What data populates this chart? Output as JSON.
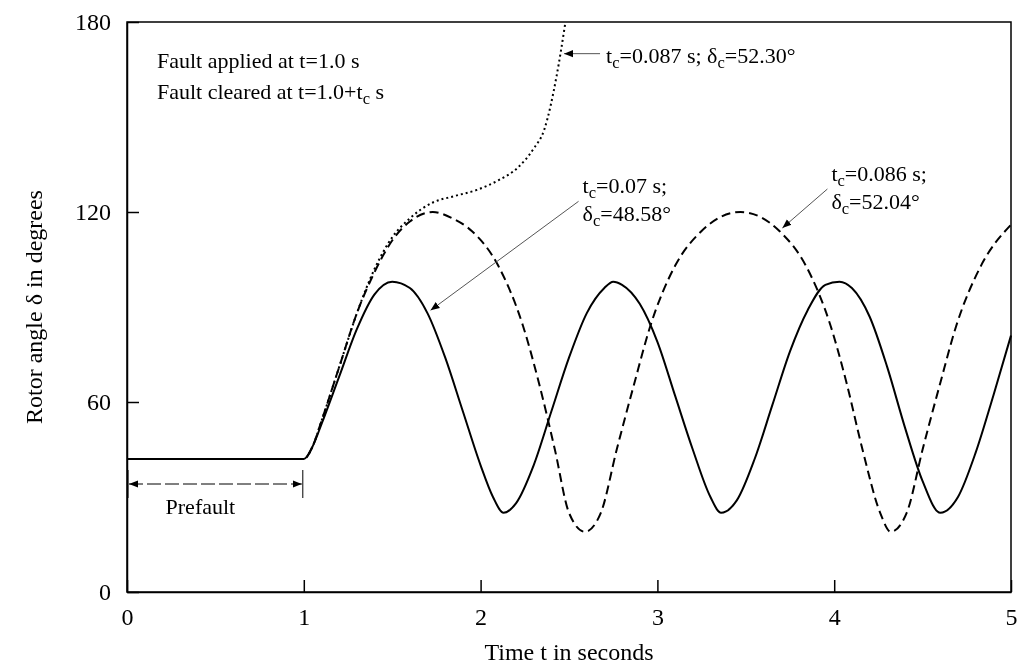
{
  "chart_data": {
    "type": "line",
    "xlabel": "Time t in seconds",
    "ylabel": "Rotor angle δ in degrees",
    "xlim": [
      0,
      5
    ],
    "ylim": [
      0,
      180
    ],
    "xticks": [
      0,
      1,
      2,
      3,
      4,
      5
    ],
    "yticks": [
      0,
      60,
      120,
      180
    ],
    "series": [
      {
        "color": "#000000",
        "line_style": "solid",
        "x": [
          0,
          1.0,
          1.05,
          1.1,
          1.2,
          1.3,
          1.4,
          1.5,
          1.6,
          1.7,
          1.8,
          1.9,
          2.0,
          2.07,
          2.13,
          2.2,
          2.3,
          2.4,
          2.5,
          2.6,
          2.7,
          2.75,
          2.8,
          2.9,
          3.0,
          3.1,
          3.2,
          3.3,
          3.36,
          3.45,
          3.55,
          3.65,
          3.75,
          3.85,
          3.95,
          4.03,
          4.1,
          4.2,
          4.3,
          4.4,
          4.5,
          4.6,
          4.7,
          4.8,
          4.9,
          5.0
        ],
        "values": [
          42,
          42,
          46,
          53,
          68,
          83,
          94,
          98,
          96,
          88,
          74,
          57,
          40,
          30,
          25,
          28,
          40,
          57,
          74,
          88,
          96,
          98,
          97,
          91,
          79,
          62,
          45,
          30,
          25,
          29,
          42,
          59,
          76,
          89,
          97,
          98,
          96,
          87,
          71,
          52,
          35,
          25,
          30,
          44,
          62,
          81
        ]
      },
      {
        "color": "#000000",
        "line_style": "dashed",
        "x": [
          0,
          1.0,
          1.05,
          1.1,
          1.2,
          1.3,
          1.4,
          1.5,
          1.6,
          1.73,
          1.84,
          1.95,
          2.1,
          2.24,
          2.33,
          2.42,
          2.5,
          2.59,
          2.68,
          2.77,
          2.87,
          2.96,
          3.1,
          3.25,
          3.47,
          3.69,
          3.84,
          3.98,
          4.07,
          4.16,
          4.26,
          4.32,
          4.41,
          4.5,
          4.6,
          4.69,
          4.83,
          5.0
        ],
        "values": [
          42,
          42,
          46,
          54,
          71,
          88,
          101,
          111,
          117,
          120,
          118,
          114,
          103,
          84,
          66,
          45,
          25,
          19,
          25,
          45,
          66,
          84,
          103,
          114,
          120,
          114,
          103,
          84,
          66,
          45,
          25,
          19,
          25,
          45,
          66,
          84,
          103,
          116
        ]
      },
      {
        "color": "#000000",
        "line_style": "dotted",
        "x": [
          0,
          1.0,
          1.05,
          1.1,
          1.2,
          1.3,
          1.4,
          1.5,
          1.6,
          1.73,
          1.85,
          1.98,
          2.1,
          2.21,
          2.3,
          2.36,
          2.43,
          2.48
        ],
        "values": [
          42,
          42,
          46,
          54,
          71,
          88,
          102,
          112,
          118,
          123,
          125,
          127,
          130,
          134,
          140,
          146,
          163,
          180
        ]
      }
    ],
    "annotations": [
      "Fault applied at t=1.0 s",
      "Fault cleared at t=1.0+t$_{c}$ s",
      "Prefault",
      {
        "text": "t$_{c}$=0.07 s;\nδ$_{c}$=48.58°",
        "x": 1.7,
        "y": 88
      },
      {
        "text": "t$_{c}$=0.087 s; δ$_{c}$=52.30°",
        "x": 2.455,
        "y": 170
      },
      {
        "text": "t$_{c}$=0.086 s;\nδ$_{c}$=52.04°",
        "x": 3.69,
        "y": 114
      }
    ]
  }
}
